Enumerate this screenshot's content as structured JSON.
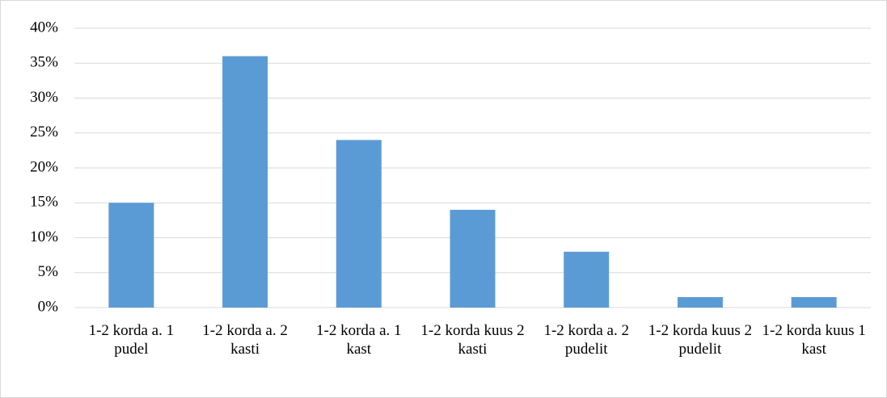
{
  "chart_data": {
    "type": "bar",
    "categories": [
      "1-2 korda a. 1 pudel",
      "1-2 korda a. 2 kasti",
      "1-2 korda a. 1 kast",
      "1-2 korda kuus 2 kasti",
      "1-2 korda a. 2 pudelit",
      "1-2 korda kuus 2 pudelit",
      "1-2 korda kuus 1 kast"
    ],
    "values": [
      15,
      36,
      24,
      14,
      8,
      1.5,
      1.5
    ],
    "color": "#5b9bd5",
    "ylim": [
      0,
      40
    ],
    "yticks": [
      {
        "value": 0,
        "label": "0%"
      },
      {
        "value": 5,
        "label": "5%"
      },
      {
        "value": 10,
        "label": "10%"
      },
      {
        "value": 15,
        "label": "15%"
      },
      {
        "value": 20,
        "label": "20%"
      },
      {
        "value": 25,
        "label": "25%"
      },
      {
        "value": 30,
        "label": "30%"
      },
      {
        "value": 35,
        "label": "35%"
      },
      {
        "value": 40,
        "label": "40%"
      }
    ],
    "grid": true
  }
}
